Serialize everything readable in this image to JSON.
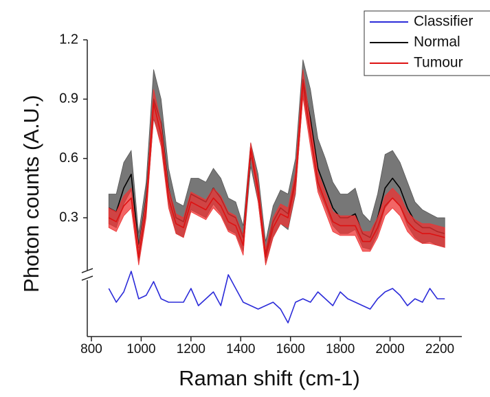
{
  "chart_data": {
    "type": "line",
    "xlabel": "Raman shift (cm-1)",
    "ylabel": "Photon counts (A.U.)",
    "xlim": [
      800,
      2280
    ],
    "xticks": [
      800,
      1000,
      1200,
      1400,
      1600,
      1800,
      2000,
      2200
    ],
    "ylim": [
      0.05,
      1.2
    ],
    "yticks": [
      0.3,
      0.6,
      0.9,
      1.2
    ],
    "y2lim": [
      -1,
      1
    ],
    "y_axis_break": true,
    "legend": "top-right",
    "x": [
      870,
      900,
      930,
      960,
      990,
      1020,
      1050,
      1080,
      1110,
      1140,
      1170,
      1200,
      1230,
      1260,
      1290,
      1320,
      1350,
      1380,
      1410,
      1440,
      1470,
      1500,
      1530,
      1560,
      1590,
      1620,
      1650,
      1680,
      1710,
      1740,
      1770,
      1800,
      1830,
      1860,
      1890,
      1920,
      1950,
      1980,
      2010,
      2040,
      2070,
      2100,
      2130,
      2160,
      2190,
      2220
    ],
    "series": [
      {
        "name": "Classifier",
        "color": "#2b2bd9",
        "axis": "y2",
        "values": [
          0.3,
          -0.1,
          0.2,
          0.8,
          0.0,
          0.1,
          0.5,
          0.0,
          -0.1,
          -0.1,
          -0.1,
          0.3,
          -0.2,
          0.0,
          0.2,
          -0.2,
          0.7,
          0.3,
          -0.1,
          -0.2,
          -0.3,
          -0.2,
          -0.1,
          -0.3,
          -0.7,
          -0.1,
          0.0,
          -0.1,
          0.2,
          0.0,
          -0.2,
          0.2,
          0.0,
          -0.1,
          -0.2,
          -0.3,
          0.0,
          0.2,
          0.3,
          0.1,
          -0.2,
          0.0,
          -0.1,
          0.3,
          0.0,
          0.0
        ]
      },
      {
        "name": "Normal",
        "color": "#000000",
        "fill": "#555555",
        "values": [
          0.35,
          0.33,
          0.45,
          0.52,
          0.15,
          0.4,
          0.9,
          0.78,
          0.45,
          0.3,
          0.28,
          0.42,
          0.4,
          0.38,
          0.45,
          0.4,
          0.32,
          0.3,
          0.2,
          0.62,
          0.45,
          0.12,
          0.28,
          0.35,
          0.32,
          0.5,
          1.0,
          0.8,
          0.55,
          0.45,
          0.35,
          0.3,
          0.3,
          0.32,
          0.22,
          0.2,
          0.3,
          0.45,
          0.5,
          0.45,
          0.35,
          0.28,
          0.25,
          0.25,
          0.23,
          0.22
        ],
        "upper": [
          0.42,
          0.42,
          0.58,
          0.64,
          0.22,
          0.48,
          1.05,
          0.9,
          0.55,
          0.38,
          0.36,
          0.5,
          0.5,
          0.48,
          0.55,
          0.5,
          0.4,
          0.38,
          0.26,
          0.68,
          0.52,
          0.18,
          0.36,
          0.44,
          0.42,
          0.6,
          1.1,
          0.95,
          0.7,
          0.6,
          0.48,
          0.42,
          0.42,
          0.45,
          0.32,
          0.28,
          0.42,
          0.62,
          0.64,
          0.58,
          0.48,
          0.38,
          0.34,
          0.32,
          0.3,
          0.3
        ],
        "lower": [
          0.27,
          0.25,
          0.37,
          0.44,
          0.08,
          0.32,
          0.8,
          0.68,
          0.37,
          0.22,
          0.2,
          0.34,
          0.32,
          0.3,
          0.37,
          0.32,
          0.24,
          0.22,
          0.13,
          0.56,
          0.38,
          0.07,
          0.2,
          0.27,
          0.24,
          0.42,
          0.92,
          0.7,
          0.45,
          0.36,
          0.26,
          0.22,
          0.22,
          0.24,
          0.15,
          0.14,
          0.22,
          0.35,
          0.4,
          0.36,
          0.26,
          0.2,
          0.17,
          0.18,
          0.16,
          0.15
        ]
      },
      {
        "name": "Tumour",
        "color": "#dd1111",
        "fill": "#ee3333",
        "values": [
          0.3,
          0.28,
          0.36,
          0.4,
          0.1,
          0.35,
          0.88,
          0.72,
          0.4,
          0.27,
          0.25,
          0.38,
          0.36,
          0.34,
          0.4,
          0.36,
          0.28,
          0.26,
          0.16,
          0.65,
          0.43,
          0.1,
          0.25,
          0.32,
          0.3,
          0.48,
          0.98,
          0.72,
          0.48,
          0.38,
          0.28,
          0.26,
          0.26,
          0.26,
          0.18,
          0.18,
          0.25,
          0.36,
          0.4,
          0.36,
          0.28,
          0.24,
          0.22,
          0.22,
          0.21,
          0.2
        ],
        "upper": [
          0.35,
          0.33,
          0.41,
          0.45,
          0.15,
          0.4,
          0.95,
          0.78,
          0.45,
          0.32,
          0.3,
          0.43,
          0.41,
          0.39,
          0.45,
          0.41,
          0.33,
          0.31,
          0.21,
          0.68,
          0.48,
          0.14,
          0.3,
          0.37,
          0.35,
          0.53,
          1.05,
          0.78,
          0.53,
          0.43,
          0.33,
          0.31,
          0.31,
          0.31,
          0.23,
          0.23,
          0.3,
          0.41,
          0.45,
          0.41,
          0.33,
          0.29,
          0.27,
          0.27,
          0.26,
          0.25
        ],
        "lower": [
          0.25,
          0.23,
          0.31,
          0.35,
          0.06,
          0.3,
          0.81,
          0.66,
          0.35,
          0.22,
          0.2,
          0.33,
          0.31,
          0.29,
          0.35,
          0.31,
          0.23,
          0.21,
          0.11,
          0.62,
          0.38,
          0.06,
          0.2,
          0.27,
          0.25,
          0.43,
          0.91,
          0.66,
          0.43,
          0.33,
          0.23,
          0.21,
          0.21,
          0.21,
          0.13,
          0.13,
          0.2,
          0.31,
          0.35,
          0.31,
          0.23,
          0.19,
          0.17,
          0.17,
          0.16,
          0.15
        ]
      }
    ]
  }
}
